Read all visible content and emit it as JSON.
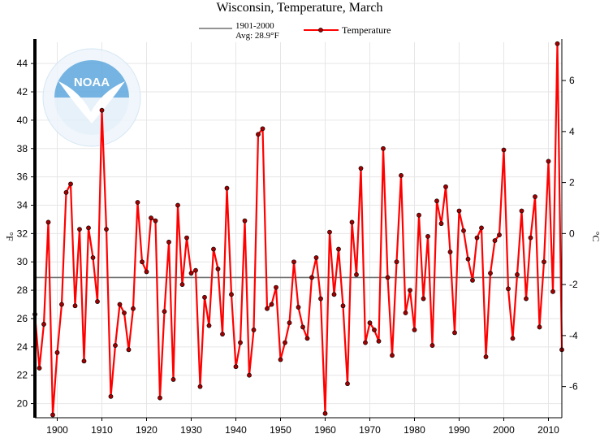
{
  "colors": {
    "series": "#ff0000",
    "point_fill": "#a00000",
    "average_line": "#707070",
    "grid": "#e6e6e6",
    "axis": "#000000",
    "logo_blue": "#4f9fd8",
    "logo_light": "#dcecf8"
  },
  "logo": {
    "icon": "noaa-logo-icon",
    "center_text": "NOAA",
    "ring_text": "NATIONAL OCEANIC AND ATMOSPHERIC ADMINISTRATION · U.S. DEPARTMENT OF COMMERCE"
  },
  "chart_data": {
    "type": "line",
    "title": "Wisconsin, Temperature, March",
    "ylabel_left": "°F",
    "ylabel_right": "°C",
    "xlim": [
      1895,
      2013
    ],
    "ylim": [
      19,
      45.5
    ],
    "grid": true,
    "legend_placement": "top-center",
    "x_ticks": [
      1900,
      1910,
      1920,
      1930,
      1940,
      1950,
      1960,
      1970,
      1980,
      1990,
      2000,
      2010
    ],
    "y_ticks_left": [
      20,
      22,
      24,
      26,
      28,
      30,
      32,
      34,
      36,
      38,
      40,
      42,
      44
    ],
    "y_ticks_right": [
      -6,
      -4,
      -2,
      0,
      2,
      4,
      6
    ],
    "average": {
      "label_line1": "1901-2000",
      "label_line2": "Avg: 28.9°F",
      "value": 28.9
    },
    "series": [
      {
        "name": "Temperature",
        "x": [
          1895,
          1896,
          1897,
          1898,
          1899,
          1900,
          1901,
          1902,
          1903,
          1904,
          1905,
          1906,
          1907,
          1908,
          1909,
          1910,
          1911,
          1912,
          1913,
          1914,
          1915,
          1916,
          1917,
          1918,
          1919,
          1920,
          1921,
          1922,
          1923,
          1924,
          1925,
          1926,
          1927,
          1928,
          1929,
          1930,
          1931,
          1932,
          1933,
          1934,
          1935,
          1936,
          1937,
          1938,
          1939,
          1940,
          1941,
          1942,
          1943,
          1944,
          1945,
          1946,
          1947,
          1948,
          1949,
          1950,
          1951,
          1952,
          1953,
          1954,
          1955,
          1956,
          1957,
          1958,
          1959,
          1960,
          1961,
          1962,
          1963,
          1964,
          1965,
          1966,
          1967,
          1968,
          1969,
          1970,
          1971,
          1972,
          1973,
          1974,
          1975,
          1976,
          1977,
          1978,
          1979,
          1980,
          1981,
          1982,
          1983,
          1984,
          1985,
          1986,
          1987,
          1988,
          1989,
          1990,
          1991,
          1992,
          1993,
          1994,
          1995,
          1996,
          1997,
          1998,
          1999,
          2000,
          2001,
          2002,
          2003,
          2004,
          2005,
          2006,
          2007,
          2008,
          2009,
          2010,
          2011,
          2012,
          2013
        ],
        "values": [
          26.3,
          22.5,
          25.6,
          32.8,
          19.2,
          23.6,
          27.0,
          34.9,
          35.5,
          26.9,
          32.3,
          23.0,
          32.4,
          30.3,
          27.2,
          40.7,
          32.3,
          20.5,
          24.1,
          27.0,
          26.4,
          23.8,
          26.7,
          34.2,
          30.0,
          29.3,
          33.1,
          32.9,
          20.4,
          26.5,
          31.4,
          21.7,
          34.0,
          28.4,
          31.7,
          29.2,
          29.4,
          21.2,
          27.5,
          25.5,
          30.9,
          29.5,
          24.9,
          35.2,
          27.7,
          22.6,
          24.3,
          32.9,
          22.0,
          25.2,
          39.0,
          39.4,
          26.7,
          27.0,
          28.2,
          23.1,
          24.3,
          25.7,
          30.0,
          26.8,
          25.4,
          24.6,
          28.9,
          30.3,
          27.4,
          19.3,
          32.1,
          27.7,
          30.9,
          26.9,
          21.4,
          32.8,
          29.1,
          36.6,
          24.3,
          25.7,
          25.2,
          24.4,
          38.0,
          28.9,
          23.4,
          30.0,
          36.1,
          26.4,
          28.0,
          25.2,
          33.3,
          27.4,
          31.8,
          24.1,
          34.3,
          32.7,
          35.3,
          30.7,
          25.0,
          33.6,
          32.2,
          30.2,
          28.7,
          31.7,
          32.4,
          23.3,
          29.2,
          31.5,
          31.9,
          37.9,
          28.1,
          24.6,
          29.1,
          33.6,
          27.4,
          31.7,
          34.6,
          25.4,
          30.0,
          37.1,
          27.9,
          45.4,
          23.8
        ]
      }
    ]
  }
}
